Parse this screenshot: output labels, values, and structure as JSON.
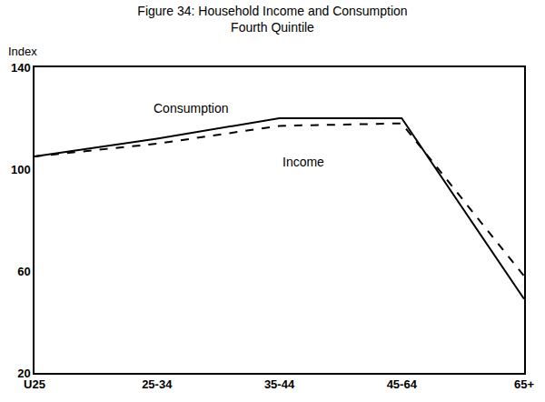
{
  "chart_data": {
    "type": "line",
    "title": "Figure 34: Household Income and Consumption",
    "subtitle": "Fourth Quintile",
    "y_label": "Index",
    "categories": [
      "U25",
      "25-34",
      "35-44",
      "45-64",
      "65+"
    ],
    "series": [
      {
        "name": "Consumption",
        "color": "#000000",
        "line_style": "solid",
        "values": [
          105,
          112,
          120,
          120,
          49
        ]
      },
      {
        "name": "Income",
        "color": "#000000",
        "line_style": "dashed",
        "values": [
          105,
          110,
          117,
          118,
          58
        ]
      }
    ],
    "ylim": [
      20,
      140
    ],
    "yticks": [
      20,
      60,
      100,
      140
    ],
    "grid": false
  }
}
